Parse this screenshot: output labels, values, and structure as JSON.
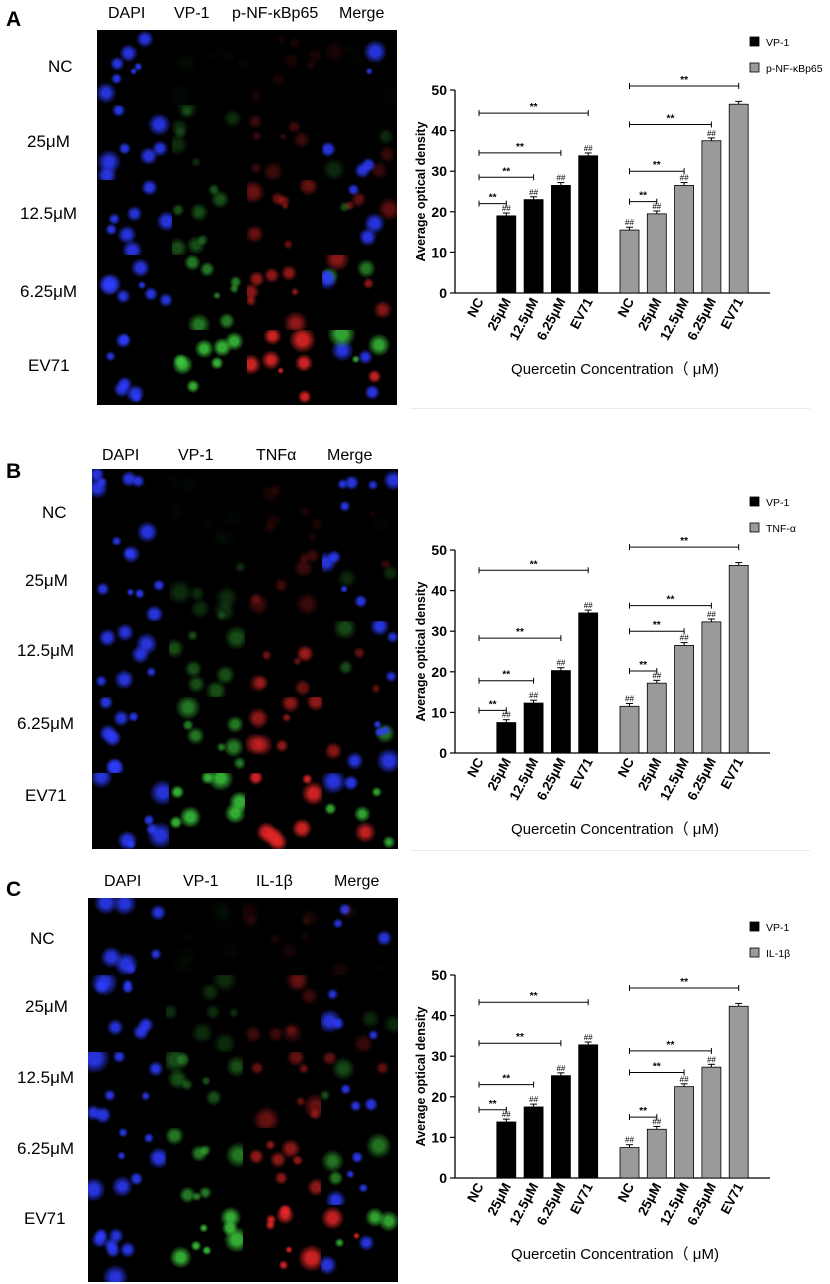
{
  "row_labels": [
    "NC",
    "25μM",
    "12.5μM",
    "6.25μM",
    "EV71"
  ],
  "panels": [
    {
      "letter": "A",
      "columns": [
        "DAPI",
        "VP-1",
        "p-NF-κBp65",
        "Merge"
      ],
      "chart_data": {
        "type": "bar",
        "title": "",
        "xlabel": "Quercetin Concentration（ μM)",
        "ylabel": "Average optical density",
        "ylim": [
          0,
          50
        ],
        "yticks": [
          0,
          10,
          20,
          30,
          40,
          50
        ],
        "categories": [
          "NC",
          "25μM",
          "12.5μM",
          "6.25μM",
          "EV71"
        ],
        "legend_position": "top-right",
        "significance_label": "**",
        "marker_label": "##",
        "series": [
          {
            "name": "VP-1",
            "color": "#000000",
            "values": [
              0,
              19,
              23,
              26.5,
              33.8
            ]
          },
          {
            "name": "p-NF-κBp65",
            "color": "#9a9a9a",
            "values": [
              15.5,
              19.5,
              26.5,
              37.5,
              46.5
            ]
          }
        ]
      }
    },
    {
      "letter": "B",
      "columns": [
        "DAPI",
        "VP-1",
        "TNFα",
        "Merge"
      ],
      "chart_data": {
        "type": "bar",
        "title": "",
        "xlabel": "Quercetin Concentration（ μM)",
        "ylabel": "Average optical density",
        "ylim": [
          0,
          50
        ],
        "yticks": [
          0,
          10,
          20,
          30,
          40,
          50
        ],
        "categories": [
          "NC",
          "25μM",
          "12.5μM",
          "6.25μM",
          "EV71"
        ],
        "legend_position": "top-right",
        "significance_label": "**",
        "marker_label": "##",
        "series": [
          {
            "name": "VP-1",
            "color": "#000000",
            "values": [
              0,
              7.5,
              12.3,
              20.3,
              34.5
            ]
          },
          {
            "name": "TNF-α",
            "color": "#9a9a9a",
            "values": [
              11.5,
              17.2,
              26.5,
              32.3,
              46.2
            ]
          }
        ]
      }
    },
    {
      "letter": "C",
      "columns": [
        "DAPI",
        "VP-1",
        "IL-1β",
        "Merge"
      ],
      "chart_data": {
        "type": "bar",
        "title": "",
        "xlabel": "Quercetin Concentration（ μM)",
        "ylabel": "Average optical density",
        "ylim": [
          0,
          50
        ],
        "yticks": [
          0,
          10,
          20,
          30,
          40,
          50
        ],
        "categories": [
          "NC",
          "25μM",
          "12.5μM",
          "6.25μM",
          "EV71"
        ],
        "legend_position": "top-right",
        "significance_label": "**",
        "marker_label": "##",
        "series": [
          {
            "name": "VP-1",
            "color": "#000000",
            "values": [
              0,
              13.8,
              17.5,
              25.2,
              32.8
            ]
          },
          {
            "name": "IL-1β",
            "color": "#9a9a9a",
            "values": [
              7.5,
              12,
              22.5,
              27.3,
              42.3
            ]
          }
        ]
      }
    }
  ]
}
